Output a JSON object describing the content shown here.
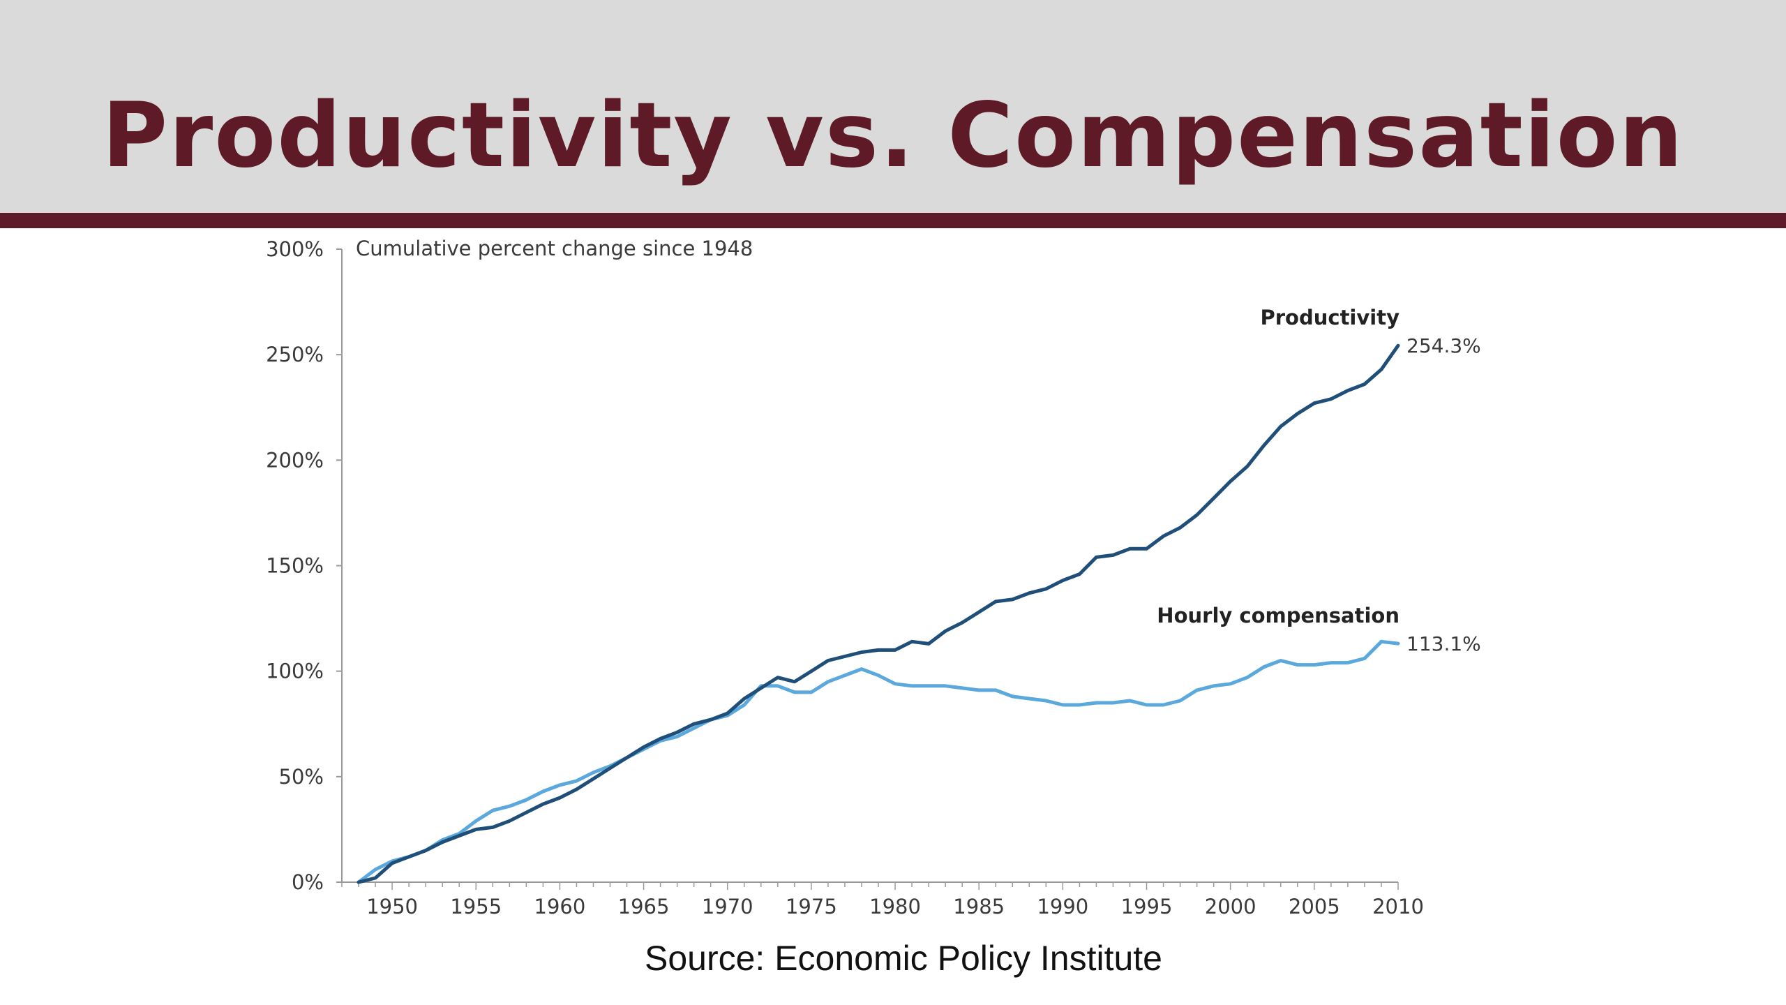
{
  "slide": {
    "title": "Productivity vs. Compensation",
    "source": "Source:  Economic Policy Institute"
  },
  "colors": {
    "header_bg": "#dadada",
    "accent": "#5e1a26",
    "productivity": "#1f4e79",
    "compensation": "#5aa8dc"
  },
  "chart_data": {
    "type": "line",
    "title": "Cumulative percent change since 1948",
    "xlabel": "",
    "ylabel": "",
    "xlim": [
      1947,
      2010
    ],
    "ylim": [
      0,
      300
    ],
    "grid": false,
    "x_ticks": [
      1950,
      1955,
      1960,
      1965,
      1970,
      1975,
      1980,
      1985,
      1990,
      1995,
      2000,
      2005,
      2010
    ],
    "x_tick_labels": [
      "1950",
      "1955",
      "1960",
      "1965",
      "1970",
      "1975",
      "1980",
      "1985",
      "1990",
      "1995",
      "2000",
      "2005",
      "2010"
    ],
    "y_ticks": [
      0,
      50,
      100,
      150,
      200,
      250,
      300
    ],
    "y_tick_labels": [
      "0%",
      "50%",
      "100%",
      "150%",
      "200%",
      "250%",
      "300%"
    ],
    "x": [
      1948,
      1949,
      1950,
      1951,
      1952,
      1953,
      1954,
      1955,
      1956,
      1957,
      1958,
      1959,
      1960,
      1961,
      1962,
      1963,
      1964,
      1965,
      1966,
      1967,
      1968,
      1969,
      1970,
      1971,
      1972,
      1973,
      1974,
      1975,
      1976,
      1977,
      1978,
      1979,
      1980,
      1981,
      1982,
      1983,
      1984,
      1985,
      1986,
      1987,
      1988,
      1989,
      1990,
      1991,
      1992,
      1993,
      1994,
      1995,
      1996,
      1997,
      1998,
      1999,
      2000,
      2001,
      2002,
      2003,
      2004,
      2005,
      2006,
      2007,
      2008,
      2009,
      2010
    ],
    "series": [
      {
        "name": "Productivity",
        "end_label": "254.3%",
        "values": [
          0,
          2,
          9,
          12,
          15,
          19,
          22,
          25,
          26,
          29,
          33,
          37,
          40,
          44,
          49,
          54,
          59,
          64,
          68,
          71,
          75,
          77,
          80,
          87,
          92,
          97,
          95,
          100,
          105,
          107,
          109,
          110,
          110,
          114,
          113,
          119,
          123,
          128,
          133,
          134,
          137,
          139,
          143,
          146,
          154,
          155,
          158,
          158,
          164,
          168,
          174,
          182,
          190,
          197,
          207,
          216,
          222,
          227,
          229,
          233,
          236,
          243,
          254.3
        ]
      },
      {
        "name": "Hourly compensation",
        "end_label": "113.1%",
        "values": [
          0,
          6,
          10,
          12,
          15,
          20,
          23,
          29,
          34,
          36,
          39,
          43,
          46,
          48,
          52,
          55,
          59,
          63,
          67,
          69,
          73,
          77,
          79,
          84,
          93,
          93,
          90,
          90,
          95,
          98,
          101,
          98,
          94,
          93,
          93,
          93,
          92,
          91,
          91,
          88,
          87,
          86,
          84,
          84,
          85,
          85,
          86,
          84,
          84,
          86,
          91,
          93,
          94,
          97,
          102,
          105,
          103,
          103,
          104,
          104,
          106,
          114,
          113.1
        ]
      }
    ]
  }
}
